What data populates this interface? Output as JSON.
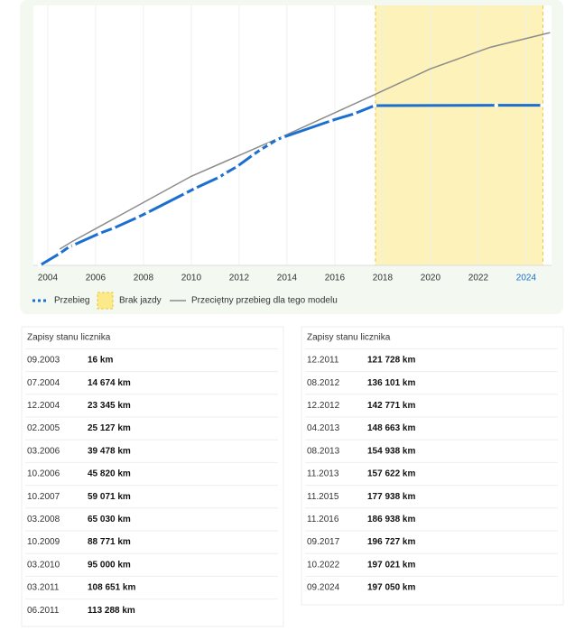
{
  "chart_data": {
    "type": "line",
    "x": [
      "09.2003",
      "07.2004",
      "12.2004",
      "02.2005",
      "03.2006",
      "10.2006",
      "10.2007",
      "03.2008",
      "10.2009",
      "03.2010",
      "03.2011",
      "06.2011",
      "12.2011",
      "08.2012",
      "12.2012",
      "04.2013",
      "08.2013",
      "11.2013",
      "11.2015",
      "11.2016",
      "09.2017",
      "10.2022",
      "09.2024"
    ],
    "series": [
      {
        "name": "Przebieg",
        "color": "#1a6fd0",
        "values": [
          16,
          14674,
          23345,
          25127,
          39478,
          45820,
          59071,
          65030,
          88771,
          95000,
          108651,
          113288,
          121728,
          136101,
          142771,
          148663,
          154938,
          157622,
          177938,
          186938,
          196727,
          197021,
          197050
        ],
        "value_labels": [
          "16 km",
          "14 674 km",
          "23 345 km",
          "25 127 km",
          "39 478 km",
          "45 820 km",
          "59 071 km",
          "65 030 km",
          "88 771 km",
          "95 000 km",
          "108 651 km",
          "113 288 km",
          "121 728 km",
          "136 101 km",
          "142 771 km",
          "148 663 km",
          "154 938 km",
          "157 622 km",
          "177 938 km",
          "186 938 km",
          "196 727 km",
          "197 021 km",
          "197 050 km"
        ]
      },
      {
        "name": "Przeciętny przebieg dla tego modelu",
        "color": "#8c8c8c",
        "x": [
          2004.5,
          2005,
          2010,
          2014,
          2017.5,
          2020,
          2022.5,
          2025
        ],
        "values": [
          20000,
          29000,
          109700,
          161000,
          208000,
          242000,
          268500,
          286500
        ]
      }
    ],
    "bands": [
      {
        "name": "Brak jazdy",
        "color": "#fbe98a",
        "x": [
          2017.7,
          2024.7
        ]
      }
    ],
    "xlim": [
      2003.4,
      2025.06
    ],
    "ylim": [
      0,
      320000
    ],
    "xticks": [
      2004,
      2006,
      2008,
      2010,
      2012,
      2014,
      2016,
      2018,
      2020,
      2022,
      2024
    ],
    "grid": true
  },
  "tables": [
    {
      "title": "Zapisy stanu licznika"
    },
    {
      "title": "Zapisy stanu licznika"
    }
  ]
}
